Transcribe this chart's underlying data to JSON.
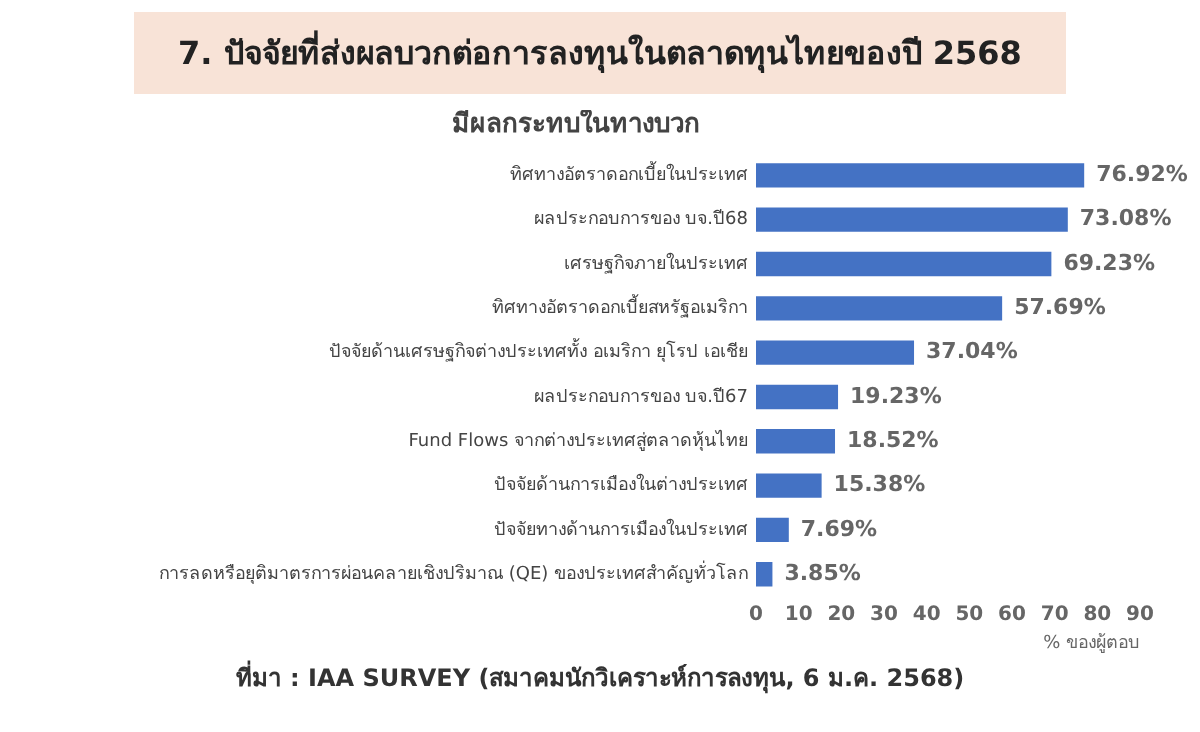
{
  "chart_data": {
    "type": "bar",
    "orientation": "horizontal",
    "title": "7. ปัจจัยที่ส่งผลบวกต่อการลงทุนในตลาดทุนไทยของปี 2568",
    "subtitle": "มีผลกระทบในทางบวก",
    "xlabel": "% ของผู้ตอบ",
    "categories": [
      "ทิศทางอัตราดอกเบี้ยในประเทศ",
      "ผลประกอบการของ บจ.ปี68",
      "เศรษฐกิจภายในประเทศ",
      "ทิศทางอัตราดอกเบี้ยสหรัฐอเมริกา",
      "ปัจจัยด้านเศรษฐกิจต่างประเทศทั้ง อเมริกา ยุโรป เอเชีย",
      "ผลประกอบการของ บจ.ปี67",
      "Fund Flows จากต่างประเทศสู่ตลาดหุ้นไทย",
      "ปัจจัยด้านการเมืองในต่างประเทศ",
      "ปัจจัยทางด้านการเมืองในประเทศ",
      "การลดหรือยุติมาตรการผ่อนคลายเชิงปริมาณ (QE) ของประเทศสำคัญทั่วโลก"
    ],
    "values": [
      76.92,
      73.08,
      69.23,
      57.69,
      37.04,
      19.23,
      18.52,
      15.38,
      7.69,
      3.85
    ],
    "value_labels": [
      "76.92%",
      "73.08%",
      "69.23%",
      "57.69%",
      "37.04%",
      "19.23%",
      "18.52%",
      "15.38%",
      "7.69%",
      "3.85%"
    ],
    "color": "#4472c4",
    "xlim": [
      0,
      90
    ],
    "xticks": [
      0,
      10,
      20,
      30,
      40,
      50,
      60,
      70,
      80,
      90
    ],
    "grid": false,
    "legend": false,
    "annotations": [
      "ที่มา : IAA SURVEY (สมาคมนักวิเคราะห์การลงทุน, 6 ม.ค. 2568)"
    ]
  }
}
